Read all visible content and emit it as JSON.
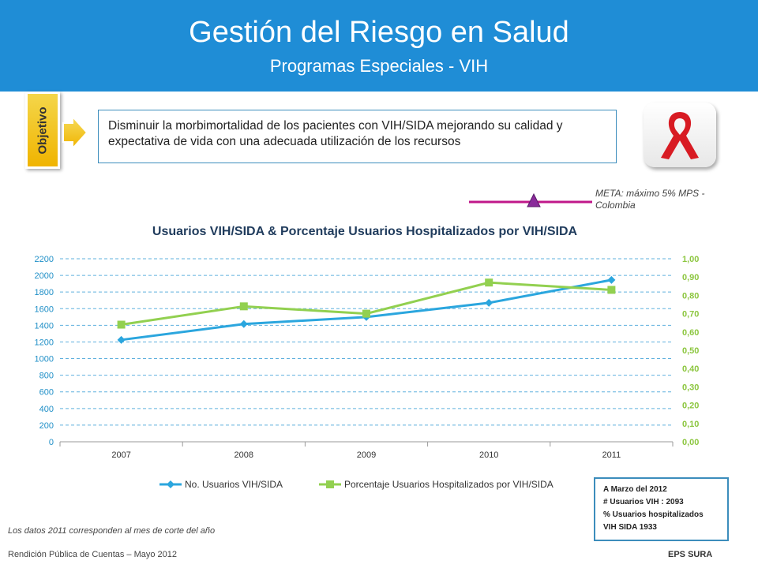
{
  "header": {
    "title": "Gestión del Riesgo en Salud",
    "subtitle": "Programas Especiales - VIH"
  },
  "objective": {
    "tab_label": "Objetivo",
    "text": "Disminuir la morbimortalidad de los pacientes con VIH/SIDA mejorando su calidad y expectativa de vida con una adecuada utilización de los recursos"
  },
  "meta": {
    "text": "META: máximo 5%  MPS -Colombia",
    "color": "#c0188a"
  },
  "chart_data": {
    "type": "line",
    "title": "Usuarios VIH/SIDA & Porcentaje Usuarios Hospitalizados por VIH/SIDA",
    "categories": [
      "2007",
      "2008",
      "2009",
      "2010",
      "2011"
    ],
    "y_left": {
      "range": [
        0,
        2200
      ],
      "ticks": [
        "0",
        "200",
        "400",
        "600",
        "800",
        "1000",
        "1200",
        "1400",
        "1600",
        "1800",
        "2000",
        "2200"
      ],
      "color": "#1f8fc7"
    },
    "y_right": {
      "range": [
        0,
        1.0
      ],
      "ticks": [
        "0,00",
        "0,10",
        "0,20",
        "0,30",
        "0,40",
        "0,50",
        "0,60",
        "0,70",
        "0,80",
        "0,90",
        "1,00"
      ],
      "color": "#8cc63f"
    },
    "grid": true,
    "legend_position": "bottom",
    "series": [
      {
        "name": "No. Usuarios VIH/SIDA",
        "axis": "left",
        "marker": "diamond",
        "color": "#2ba6de",
        "values": [
          1225,
          1415,
          1500,
          1670,
          1945
        ]
      },
      {
        "name": "Porcentaje Usuarios Hospitalizados por VIH/SIDA",
        "axis": "right",
        "marker": "square",
        "color": "#92d050",
        "values": [
          0.64,
          0.74,
          0.7,
          0.87,
          0.83
        ]
      }
    ]
  },
  "info_box": {
    "lines": [
      "A Marzo del 2012",
      "# Usuarios VIH  : 2093",
      "% Usuarios hospitalizados",
      "VIH SIDA 1933"
    ]
  },
  "footnote": "Los datos 2011 corresponden  al mes de corte del año",
  "footer": {
    "left": "Rendición Pública de Cuentas – Mayo 2012",
    "right": "EPS SURA"
  }
}
